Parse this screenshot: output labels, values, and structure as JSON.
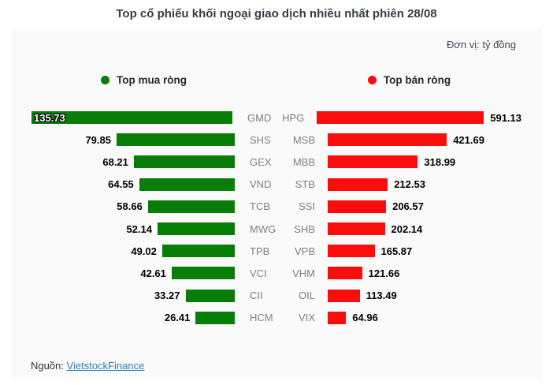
{
  "title": "Top cổ phiếu khối ngoại giao dịch nhiều nhất phiên 28/08",
  "unit_label": "Đơn vị: tỷ đồng",
  "legend": {
    "buy_label": "Top mua ròng",
    "sell_label": "Top bán ròng"
  },
  "footer": {
    "source_label": "Nguồn:",
    "source_link": "VietstockFinance"
  },
  "colors": {
    "buy": "#087d08",
    "sell": "#fa0d0d",
    "panel_bg": "#fafafa",
    "link": "#337ab7"
  },
  "chart_data": {
    "type": "bar",
    "orientation": "horizontal",
    "title": "Top cổ phiếu khối ngoại giao dịch nhiều nhất phiên 28/08",
    "unit": "tỷ đồng",
    "legend_position": "top",
    "series": [
      {
        "name": "Top mua ròng",
        "color": "#087d08",
        "side": "left",
        "max_value": 135.73,
        "data": [
          {
            "ticker": "GMD",
            "value": 135.73,
            "label_inside": true
          },
          {
            "ticker": "SHS",
            "value": 79.85,
            "label_inside": false
          },
          {
            "ticker": "GEX",
            "value": 68.21,
            "label_inside": false
          },
          {
            "ticker": "VND",
            "value": 64.55,
            "label_inside": false
          },
          {
            "ticker": "TCB",
            "value": 58.66,
            "label_inside": false
          },
          {
            "ticker": "MWG",
            "value": 52.14,
            "label_inside": false
          },
          {
            "ticker": "TPB",
            "value": 49.02,
            "label_inside": false
          },
          {
            "ticker": "VCI",
            "value": 42.61,
            "label_inside": false
          },
          {
            "ticker": "CII",
            "value": 33.27,
            "label_inside": false
          },
          {
            "ticker": "HCM",
            "value": 26.41,
            "label_inside": false
          }
        ]
      },
      {
        "name": "Top bán ròng",
        "color": "#fa0d0d",
        "side": "right",
        "max_value": 591.13,
        "data": [
          {
            "ticker": "HPG",
            "value": 591.13,
            "label_inside": false
          },
          {
            "ticker": "MSB",
            "value": 421.69,
            "label_inside": false
          },
          {
            "ticker": "MBB",
            "value": 318.99,
            "label_inside": false
          },
          {
            "ticker": "STB",
            "value": 212.53,
            "label_inside": false
          },
          {
            "ticker": "SSI",
            "value": 206.57,
            "label_inside": false
          },
          {
            "ticker": "SHB",
            "value": 202.14,
            "label_inside": false
          },
          {
            "ticker": "VPB",
            "value": 165.87,
            "label_inside": false
          },
          {
            "ticker": "VHM",
            "value": 121.66,
            "label_inside": false
          },
          {
            "ticker": "OIL",
            "value": 113.49,
            "label_inside": false
          },
          {
            "ticker": "VIX",
            "value": 64.96,
            "label_inside": false
          }
        ]
      }
    ]
  }
}
